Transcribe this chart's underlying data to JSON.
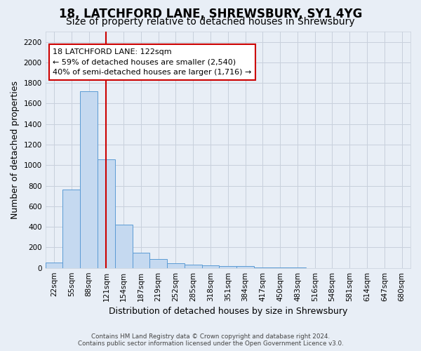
{
  "title": "18, LATCHFORD LANE, SHREWSBURY, SY1 4YG",
  "subtitle": "Size of property relative to detached houses in Shrewsbury",
  "xlabel": "Distribution of detached houses by size in Shrewsbury",
  "ylabel": "Number of detached properties",
  "footer_line1": "Contains HM Land Registry data © Crown copyright and database right 2024.",
  "footer_line2": "Contains public sector information licensed under the Open Government Licence v3.0.",
  "bin_labels": [
    "22sqm",
    "55sqm",
    "88sqm",
    "121sqm",
    "154sqm",
    "187sqm",
    "219sqm",
    "252sqm",
    "285sqm",
    "318sqm",
    "351sqm",
    "384sqm",
    "417sqm",
    "450sqm",
    "483sqm",
    "516sqm",
    "548sqm",
    "581sqm",
    "614sqm",
    "647sqm",
    "680sqm"
  ],
  "bar_values": [
    55,
    760,
    1720,
    1060,
    420,
    150,
    85,
    45,
    35,
    25,
    15,
    15,
    5,
    5,
    5,
    0,
    0,
    0,
    0,
    0,
    0
  ],
  "bar_color": "#c5d9f0",
  "bar_edge_color": "#5b9bd5",
  "property_bin_index": 3,
  "vline_color": "#cc0000",
  "annotation_text": "18 LATCHFORD LANE: 122sqm\n← 59% of detached houses are smaller (2,540)\n40% of semi-detached houses are larger (1,716) →",
  "annotation_box_color": "#ffffff",
  "annotation_box_edge_color": "#cc0000",
  "ylim": [
    0,
    2300
  ],
  "yticks": [
    0,
    200,
    400,
    600,
    800,
    1000,
    1200,
    1400,
    1600,
    1800,
    2000,
    2200
  ],
  "grid_color": "#c8d0dc",
  "bg_color": "#e8eef6",
  "title_fontsize": 12,
  "subtitle_fontsize": 10,
  "label_fontsize": 9,
  "tick_fontsize": 7.5,
  "annotation_fontsize": 8
}
